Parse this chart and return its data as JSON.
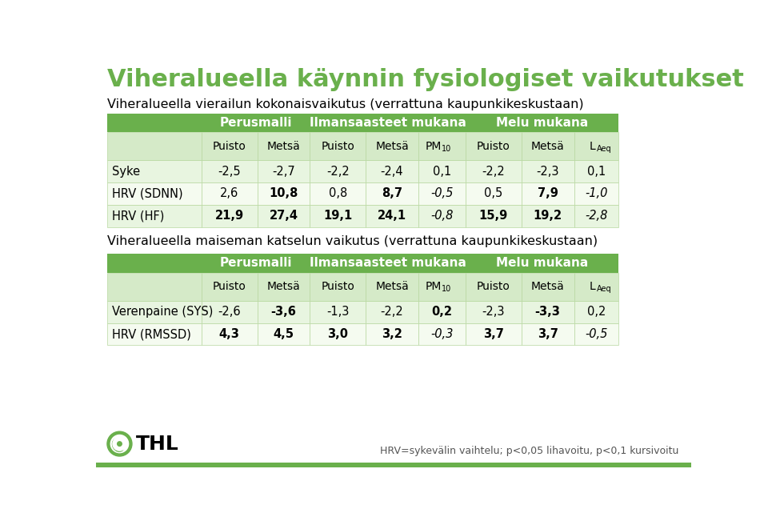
{
  "title": "Viheralueella käynnin fysiologiset vaikutukset",
  "title_color": "#6ab04c",
  "bg_color": "#ffffff",
  "subtitle1": "Viheralueella vierailun kokonaisvaikutus (verrattuna kaupunkikeskustaan)",
  "subtitle2": "Viheralueella maiseman katselun vaikutus (verrattuna kaupunkikeskustaan)",
  "footer": "HRV=sykevälin vaihtelu; p<0,05 lihavoitu, p<0,1 kursivoitu",
  "hdr_green": "#6ab04c",
  "hdr_text": "#ffffff",
  "sub_green": "#d5eac8",
  "row_light": "#e8f5e0",
  "row_white": "#f5fbf0",
  "bottom_bar": "#6ab04c",
  "table1_rows": [
    {
      "label": "Syke",
      "values": [
        "-2,5",
        "-2,7",
        "-2,2",
        "-2,4",
        "0,1",
        "-2,2",
        "-2,3",
        "0,1"
      ],
      "bold": [
        false,
        false,
        false,
        false,
        false,
        false,
        false,
        false
      ],
      "italic": [
        false,
        false,
        false,
        false,
        false,
        false,
        false,
        false
      ]
    },
    {
      "label": "HRV (SDNN)",
      "values": [
        "2,6",
        "10,8",
        "0,8",
        "8,7",
        "-0,5",
        "0,5",
        "7,9",
        "-1,0"
      ],
      "bold": [
        false,
        true,
        false,
        true,
        false,
        false,
        true,
        false
      ],
      "italic": [
        false,
        false,
        false,
        false,
        true,
        false,
        false,
        true
      ]
    },
    {
      "label": "HRV (HF)",
      "values": [
        "21,9",
        "27,4",
        "19,1",
        "24,1",
        "-0,8",
        "15,9",
        "19,2",
        "-2,8"
      ],
      "bold": [
        true,
        true,
        true,
        true,
        false,
        true,
        true,
        false
      ],
      "italic": [
        false,
        false,
        false,
        false,
        true,
        false,
        false,
        true
      ]
    }
  ],
  "table2_rows": [
    {
      "label": "Verenpaine (SYS)",
      "values": [
        "-2,6",
        "-3,6",
        "-1,3",
        "-2,2",
        "0,2",
        "-2,3",
        "-3,3",
        "0,2"
      ],
      "bold": [
        false,
        true,
        false,
        false,
        true,
        false,
        true,
        false
      ],
      "italic": [
        false,
        false,
        false,
        false,
        false,
        false,
        false,
        false
      ]
    },
    {
      "label": "HRV (RMSSD)",
      "values": [
        "4,3",
        "4,5",
        "3,0",
        "3,2",
        "-0,3",
        "3,7",
        "3,7",
        "-0,5"
      ],
      "bold": [
        true,
        true,
        true,
        true,
        false,
        true,
        true,
        false
      ],
      "italic": [
        false,
        false,
        false,
        false,
        true,
        false,
        false,
        true
      ]
    }
  ]
}
